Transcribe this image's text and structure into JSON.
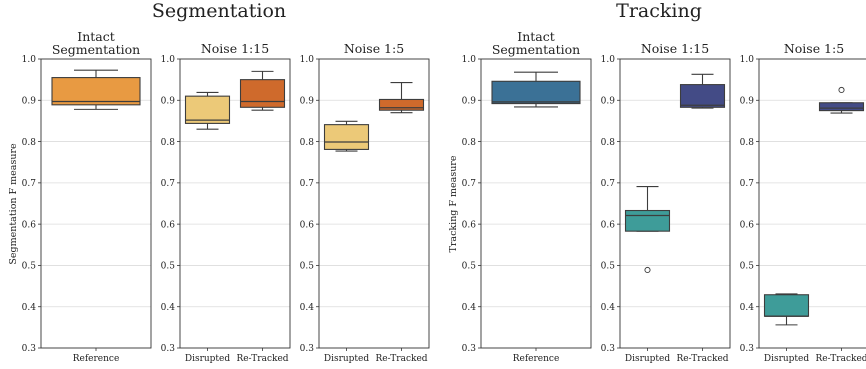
{
  "groups": [
    {
      "title": "Segmentation",
      "ylabel": "Segmentation F measure"
    },
    {
      "title": "Tracking",
      "ylabel": "Tracking F measure"
    }
  ],
  "chart_data": [
    {
      "type": "box",
      "group": 0,
      "title": "Intact\nSegmentation",
      "ylim": [
        0.3,
        1.0
      ],
      "yticks": [
        "0.3",
        "0.4",
        "0.5",
        "0.6",
        "0.7",
        "0.8",
        "0.9",
        "1.0"
      ],
      "grid": true,
      "boxes": [
        {
          "label": "Reference",
          "color": "#E89A42",
          "whislo": 0.878,
          "q1": 0.889,
          "med": 0.897,
          "q3": 0.955,
          "whishi": 0.973,
          "fliers": []
        }
      ]
    },
    {
      "type": "box",
      "group": 0,
      "title": "Noise 1:15",
      "ylim": [
        0.3,
        1.0
      ],
      "yticks": [
        "0.3",
        "0.4",
        "0.5",
        "0.6",
        "0.7",
        "0.8",
        "0.9",
        "1.0"
      ],
      "grid": true,
      "boxes": [
        {
          "label": "Disrupted",
          "color": "#ECC978",
          "whislo": 0.83,
          "q1": 0.844,
          "med": 0.852,
          "q3": 0.91,
          "whishi": 0.919,
          "fliers": []
        },
        {
          "label": "Re-Tracked",
          "color": "#CF6A2C",
          "whislo": 0.876,
          "q1": 0.883,
          "med": 0.897,
          "q3": 0.95,
          "whishi": 0.97,
          "fliers": []
        }
      ]
    },
    {
      "type": "box",
      "group": 0,
      "title": "Noise 1:5",
      "ylim": [
        0.3,
        1.0
      ],
      "yticks": [
        "0.3",
        "0.4",
        "0.5",
        "0.6",
        "0.7",
        "0.8",
        "0.9",
        "1.0"
      ],
      "grid": true,
      "boxes": [
        {
          "label": "Disrupted",
          "color": "#ECC978",
          "whislo": 0.777,
          "q1": 0.781,
          "med": 0.799,
          "q3": 0.841,
          "whishi": 0.849,
          "fliers": []
        },
        {
          "label": "Re-Tracked",
          "color": "#CF6A2C",
          "whislo": 0.87,
          "q1": 0.876,
          "med": 0.882,
          "q3": 0.902,
          "whishi": 0.943,
          "fliers": []
        }
      ]
    },
    {
      "type": "box",
      "group": 1,
      "title": "Intact\nSegmentation",
      "ylim": [
        0.3,
        1.0
      ],
      "yticks": [
        "0.3",
        "0.4",
        "0.5",
        "0.6",
        "0.7",
        "0.8",
        "0.9",
        "1.0"
      ],
      "grid": true,
      "boxes": [
        {
          "label": "Reference",
          "color": "#3B7196",
          "whislo": 0.884,
          "q1": 0.892,
          "med": 0.896,
          "q3": 0.946,
          "whishi": 0.968,
          "fliers": []
        }
      ]
    },
    {
      "type": "box",
      "group": 1,
      "title": "Noise 1:15",
      "ylim": [
        0.3,
        1.0
      ],
      "yticks": [
        "0.3",
        "0.4",
        "0.5",
        "0.6",
        "0.7",
        "0.8",
        "0.9",
        "1.0"
      ],
      "grid": true,
      "boxes": [
        {
          "label": "Disrupted",
          "color": "#3E9C99",
          "whislo": 0.583,
          "q1": 0.583,
          "med": 0.621,
          "q3": 0.633,
          "whishi": 0.691,
          "fliers": [
            0.489
          ]
        },
        {
          "label": "Re-Tracked",
          "color": "#434B86",
          "whislo": 0.881,
          "q1": 0.883,
          "med": 0.888,
          "q3": 0.938,
          "whishi": 0.963,
          "fliers": []
        }
      ]
    },
    {
      "type": "box",
      "group": 1,
      "title": "Noise 1:5",
      "ylim": [
        0.3,
        1.0
      ],
      "yticks": [
        "0.3",
        "0.4",
        "0.5",
        "0.6",
        "0.7",
        "0.8",
        "0.9",
        "1.0"
      ],
      "grid": true,
      "boxes": [
        {
          "label": "Disrupted",
          "color": "#3E9C99",
          "whislo": 0.356,
          "q1": 0.377,
          "med": 0.377,
          "q3": 0.429,
          "whishi": 0.431,
          "fliers": []
        },
        {
          "label": "Re-Tracked",
          "color": "#434B86",
          "whislo": 0.869,
          "q1": 0.875,
          "med": 0.881,
          "q3": 0.894,
          "whishi": 0.894,
          "fliers": [
            0.925
          ]
        }
      ]
    }
  ]
}
